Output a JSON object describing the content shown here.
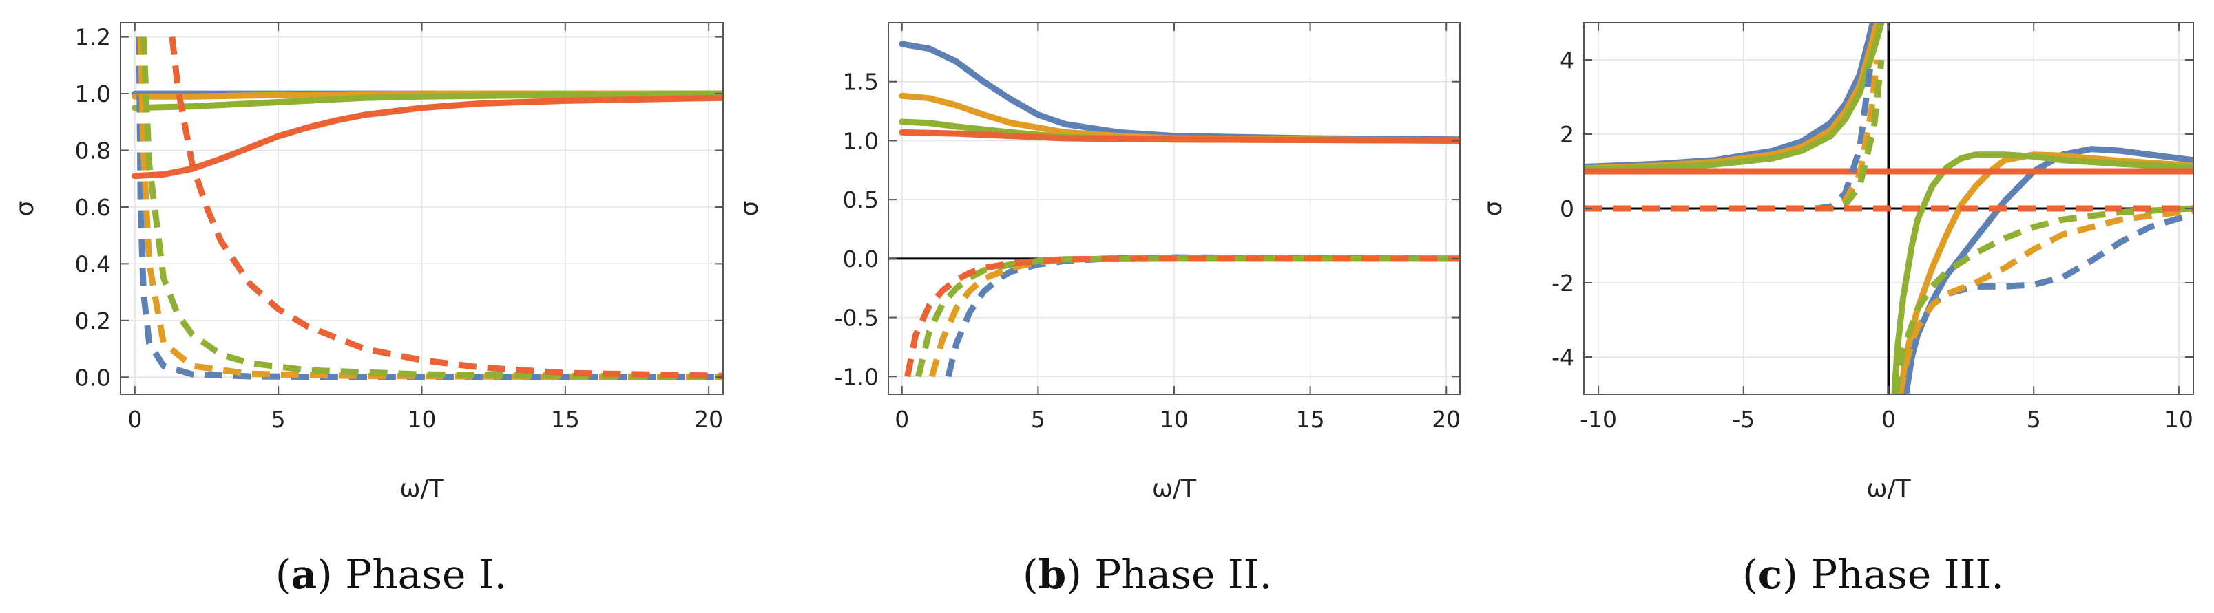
{
  "colors": {
    "blue": "#5e81b5",
    "orange": "#e19c24",
    "green": "#8fb032",
    "red": "#eb6235"
  },
  "chart_data": [
    {
      "type": "line",
      "title": "",
      "xlabel": "ω/T",
      "ylabel": "σ",
      "xlim": [
        -0.5,
        20.5
      ],
      "ylim": [
        -0.06,
        1.25
      ],
      "xticks": [
        0,
        5,
        10,
        15,
        20
      ],
      "yticks": [
        0.0,
        0.2,
        0.4,
        0.6,
        0.8,
        1.0,
        1.2
      ],
      "ytick_labels": [
        "0.0",
        "0.2",
        "0.4",
        "0.6",
        "0.8",
        "1.0",
        "1.2"
      ],
      "caption_letter": "a",
      "caption_text": " Phase I.",
      "series": [
        {
          "name": "blue real",
          "color": "blue",
          "style": "solid",
          "x": [
            0,
            2,
            5,
            10,
            20.5
          ],
          "y": [
            1.0,
            1.0,
            1.0,
            1.0,
            1.0
          ]
        },
        {
          "name": "orange real",
          "color": "orange",
          "style": "solid",
          "x": [
            0,
            2,
            5,
            10,
            20.5
          ],
          "y": [
            0.99,
            0.99,
            0.995,
            1.0,
            1.0
          ]
        },
        {
          "name": "green real",
          "color": "green",
          "style": "solid",
          "x": [
            0,
            2,
            4,
            6,
            8,
            10,
            15,
            20.5
          ],
          "y": [
            0.95,
            0.955,
            0.965,
            0.975,
            0.985,
            0.99,
            0.995,
            1.0
          ]
        },
        {
          "name": "red real",
          "color": "red",
          "style": "solid",
          "x": [
            0,
            1,
            2,
            3,
            4,
            5,
            6,
            7,
            8,
            10,
            12,
            15,
            20.5
          ],
          "y": [
            0.71,
            0.715,
            0.735,
            0.77,
            0.81,
            0.85,
            0.88,
            0.905,
            0.925,
            0.95,
            0.965,
            0.975,
            0.985
          ]
        },
        {
          "name": "blue imag",
          "color": "blue",
          "style": "dashed",
          "x": [
            0.15,
            0.2,
            0.3,
            0.5,
            1,
            2,
            4,
            8,
            20.5
          ],
          "y": [
            1.2,
            0.6,
            0.3,
            0.12,
            0.04,
            0.01,
            0.003,
            0.001,
            0.0
          ]
        },
        {
          "name": "orange imag",
          "color": "orange",
          "style": "dashed",
          "x": [
            0.2,
            0.3,
            0.5,
            1,
            2,
            4,
            8,
            20.5
          ],
          "y": [
            1.2,
            0.8,
            0.4,
            0.12,
            0.04,
            0.012,
            0.004,
            0.0
          ]
        },
        {
          "name": "green imag",
          "color": "green",
          "style": "dashed",
          "x": [
            0.3,
            0.5,
            1,
            1.5,
            2,
            3,
            4,
            6,
            10,
            20.5
          ],
          "y": [
            1.2,
            0.75,
            0.35,
            0.22,
            0.15,
            0.08,
            0.05,
            0.025,
            0.01,
            0.0
          ]
        },
        {
          "name": "red imag",
          "color": "red",
          "style": "dashed",
          "x": [
            1.3,
            1.5,
            2,
            2.5,
            3,
            4,
            5,
            6,
            8,
            10,
            12,
            15,
            20.5
          ],
          "y": [
            1.2,
            1.02,
            0.75,
            0.6,
            0.48,
            0.33,
            0.24,
            0.18,
            0.1,
            0.06,
            0.035,
            0.015,
            0.005
          ]
        }
      ]
    },
    {
      "type": "line",
      "title": "",
      "xlabel": "ω/T",
      "ylabel": "σ",
      "xlim": [
        -0.5,
        20.5
      ],
      "ylim": [
        -1.15,
        2.0
      ],
      "xticks": [
        0,
        5,
        10,
        15,
        20
      ],
      "yticks": [
        -1.0,
        -0.5,
        0.0,
        0.5,
        1.0,
        1.5
      ],
      "ytick_labels": [
        "-1.0",
        "-0.5",
        "0.0",
        "0.5",
        "1.0",
        "1.5"
      ],
      "zero_line": true,
      "caption_letter": "b",
      "caption_text": " Phase II.",
      "series": [
        {
          "name": "blue real",
          "color": "blue",
          "style": "solid",
          "x": [
            0,
            1,
            2,
            3,
            4,
            5,
            6,
            8,
            10,
            15,
            20.5
          ],
          "y": [
            1.82,
            1.78,
            1.67,
            1.5,
            1.35,
            1.22,
            1.14,
            1.07,
            1.04,
            1.02,
            1.01
          ]
        },
        {
          "name": "orange real",
          "color": "orange",
          "style": "solid",
          "x": [
            0,
            1,
            2,
            3,
            4,
            6,
            8,
            10,
            15,
            20.5
          ],
          "y": [
            1.38,
            1.36,
            1.3,
            1.22,
            1.15,
            1.07,
            1.04,
            1.02,
            1.01,
            1.0
          ]
        },
        {
          "name": "green real",
          "color": "green",
          "style": "solid",
          "x": [
            0,
            1,
            2,
            4,
            6,
            10,
            20.5
          ],
          "y": [
            1.16,
            1.15,
            1.12,
            1.07,
            1.03,
            1.01,
            1.0
          ]
        },
        {
          "name": "red real",
          "color": "red",
          "style": "solid",
          "x": [
            0,
            2,
            4,
            6,
            10,
            20.5
          ],
          "y": [
            1.07,
            1.06,
            1.04,
            1.02,
            1.01,
            1.0
          ]
        },
        {
          "name": "blue imag",
          "color": "blue",
          "style": "dashed",
          "x": [
            1.7,
            2,
            2.5,
            3,
            3.5,
            4,
            5,
            6,
            8,
            10,
            20.5
          ],
          "y": [
            -1.0,
            -0.72,
            -0.45,
            -0.28,
            -0.18,
            -0.11,
            -0.05,
            -0.02,
            0.005,
            0.01,
            0.0
          ]
        },
        {
          "name": "orange imag",
          "color": "orange",
          "style": "dashed",
          "x": [
            1.1,
            1.5,
            2,
            2.5,
            3,
            4,
            5,
            6,
            8,
            10,
            20.5
          ],
          "y": [
            -1.0,
            -0.68,
            -0.42,
            -0.27,
            -0.17,
            -0.08,
            -0.03,
            -0.01,
            0.005,
            0.005,
            0.0
          ]
        },
        {
          "name": "green imag",
          "color": "green",
          "style": "dashed",
          "x": [
            0.6,
            1,
            1.5,
            2,
            2.5,
            3,
            4,
            5,
            6,
            10,
            20.5
          ],
          "y": [
            -1.0,
            -0.62,
            -0.38,
            -0.25,
            -0.16,
            -0.1,
            -0.05,
            -0.02,
            -0.005,
            0.0,
            0.0
          ]
        },
        {
          "name": "red imag",
          "color": "red",
          "style": "dashed",
          "x": [
            0.2,
            0.5,
            1,
            1.5,
            2,
            2.5,
            3,
            4,
            5,
            6,
            10,
            20.5
          ],
          "y": [
            -1.0,
            -0.65,
            -0.4,
            -0.27,
            -0.18,
            -0.12,
            -0.08,
            -0.04,
            -0.02,
            -0.005,
            0.0,
            0.0
          ]
        }
      ]
    },
    {
      "type": "line",
      "title": "",
      "xlabel": "ω/T",
      "ylabel": "σ",
      "xlim": [
        -10.5,
        10.5
      ],
      "ylim": [
        -5.0,
        5.0
      ],
      "xticks": [
        -10,
        -5,
        0,
        5,
        10
      ],
      "xtick_labels": [
        "-10",
        "-5",
        "0",
        "5",
        "10"
      ],
      "yticks": [
        -4,
        -2,
        0,
        2,
        4
      ],
      "ytick_labels": [
        "-4",
        "-2",
        "0",
        "2",
        "4"
      ],
      "zero_line": true,
      "vertical_zero_line": true,
      "caption_letter": "c",
      "caption_text": " Phase III.",
      "series": [
        {
          "name": "blue real left",
          "color": "blue",
          "style": "solid",
          "x": [
            -10.5,
            -8,
            -6,
            -4,
            -3,
            -2,
            -1.5,
            -1,
            -0.7,
            -0.55
          ],
          "y": [
            1.12,
            1.2,
            1.3,
            1.55,
            1.8,
            2.3,
            2.8,
            3.6,
            4.5,
            5.0
          ]
        },
        {
          "name": "blue real right",
          "color": "blue",
          "style": "solid",
          "x": [
            0.6,
            0.8,
            1,
            1.5,
            2,
            3,
            4,
            5,
            6,
            7,
            8,
            9,
            10.5
          ],
          "y": [
            -5.0,
            -4.0,
            -3.4,
            -2.5,
            -1.8,
            -0.8,
            0.2,
            1.0,
            1.45,
            1.6,
            1.55,
            1.45,
            1.3
          ]
        },
        {
          "name": "orange real left",
          "color": "orange",
          "style": "solid",
          "x": [
            -10.5,
            -8,
            -6,
            -4,
            -3,
            -2,
            -1.5,
            -1,
            -0.6,
            -0.4
          ],
          "y": [
            1.08,
            1.15,
            1.25,
            1.45,
            1.65,
            2.1,
            2.6,
            3.3,
            4.4,
            5.0
          ]
        },
        {
          "name": "orange real right",
          "color": "orange",
          "style": "solid",
          "x": [
            0.4,
            0.6,
            0.8,
            1,
            1.5,
            2,
            2.5,
            3,
            3.5,
            4,
            5,
            6,
            7,
            8,
            10.5
          ],
          "y": [
            -5.0,
            -4.0,
            -3.3,
            -2.7,
            -1.6,
            -0.7,
            0.1,
            0.6,
            1.0,
            1.3,
            1.45,
            1.42,
            1.35,
            1.28,
            1.15
          ]
        },
        {
          "name": "green real left",
          "color": "green",
          "style": "solid",
          "x": [
            -10.5,
            -8,
            -6,
            -4,
            -3,
            -2,
            -1.5,
            -1,
            -0.5,
            -0.25
          ],
          "y": [
            1.05,
            1.1,
            1.18,
            1.35,
            1.55,
            1.95,
            2.4,
            3.1,
            4.3,
            5.0
          ]
        },
        {
          "name": "green real right",
          "color": "green",
          "style": "solid",
          "x": [
            0.2,
            0.3,
            0.5,
            0.8,
            1,
            1.5,
            2,
            2.5,
            3,
            4,
            5,
            6,
            8,
            10.5
          ],
          "y": [
            -5.0,
            -3.8,
            -2.4,
            -1.0,
            -0.3,
            0.6,
            1.1,
            1.35,
            1.45,
            1.45,
            1.4,
            1.3,
            1.2,
            1.1
          ]
        },
        {
          "name": "red real",
          "color": "red",
          "style": "solid",
          "x": [
            -10.5,
            10.5
          ],
          "y": [
            1.0,
            1.0
          ]
        },
        {
          "name": "blue imag left",
          "color": "blue",
          "style": "dashed",
          "x": [
            -10.5,
            -4,
            -2.5,
            -2,
            -1.5,
            -1,
            -0.6
          ],
          "y": [
            0.0,
            0.0,
            0.0,
            0.05,
            0.4,
            1.6,
            4.0
          ]
        },
        {
          "name": "blue imag right",
          "color": "blue",
          "style": "dashed",
          "x": [
            0.6,
            0.8,
            1,
            1.3,
            1.6,
            2,
            3,
            4,
            5,
            6,
            7,
            8,
            9,
            10.5
          ],
          "y": [
            -5.0,
            -3.9,
            -3.3,
            -2.8,
            -2.5,
            -2.3,
            -2.1,
            -2.1,
            -2.05,
            -1.85,
            -1.4,
            -0.9,
            -0.5,
            -0.15
          ]
        },
        {
          "name": "orange imag left",
          "color": "orange",
          "style": "dashed",
          "x": [
            -10.5,
            -4,
            -2,
            -1.5,
            -1,
            -0.6,
            -0.4
          ],
          "y": [
            0.0,
            0.0,
            0.0,
            0.2,
            0.9,
            2.6,
            4.0
          ]
        },
        {
          "name": "orange imag right",
          "color": "orange",
          "style": "dashed",
          "x": [
            0.4,
            0.6,
            0.8,
            1,
            1.5,
            2,
            3,
            4,
            5,
            6,
            8,
            10.5
          ],
          "y": [
            -5.0,
            -4.2,
            -3.6,
            -3.2,
            -2.6,
            -2.3,
            -2.0,
            -1.6,
            -1.1,
            -0.7,
            -0.3,
            -0.05
          ]
        },
        {
          "name": "green imag left",
          "color": "green",
          "style": "dashed",
          "x": [
            -10.5,
            -4,
            -2,
            -1.5,
            -1,
            -0.5,
            -0.25
          ],
          "y": [
            0.0,
            0.0,
            0.0,
            0.1,
            0.6,
            2.2,
            4.0
          ]
        },
        {
          "name": "green imag right",
          "color": "green",
          "style": "dashed",
          "x": [
            0.25,
            0.5,
            1,
            1.5,
            2,
            3,
            4,
            5,
            6,
            8,
            10.5
          ],
          "y": [
            -5.0,
            -3.8,
            -2.7,
            -2.1,
            -1.7,
            -1.2,
            -0.8,
            -0.5,
            -0.3,
            -0.1,
            0.0
          ]
        },
        {
          "name": "red imag",
          "color": "red",
          "style": "dashed",
          "x": [
            -10.5,
            10.5
          ],
          "y": [
            0.0,
            0.0
          ]
        }
      ]
    }
  ]
}
